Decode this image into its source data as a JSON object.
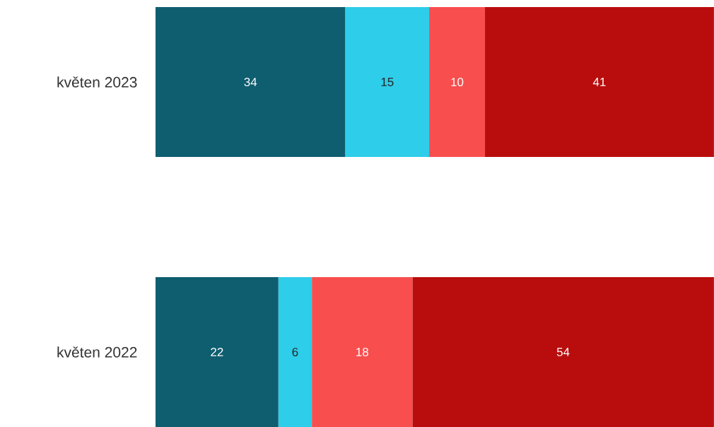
{
  "chart_data": {
    "type": "bar",
    "orientation": "horizontal",
    "stacked": true,
    "data_labels": true,
    "categories": [
      "květen 2023",
      "květen 2022"
    ],
    "series": [
      {
        "color": "#0e5e6f",
        "values": [
          34,
          22
        ]
      },
      {
        "color": "#2ecde9",
        "values": [
          15,
          6
        ]
      },
      {
        "color": "#f84e4e",
        "values": [
          10,
          18
        ]
      },
      {
        "color": "#b90d0d",
        "values": [
          41,
          54
        ]
      }
    ]
  }
}
